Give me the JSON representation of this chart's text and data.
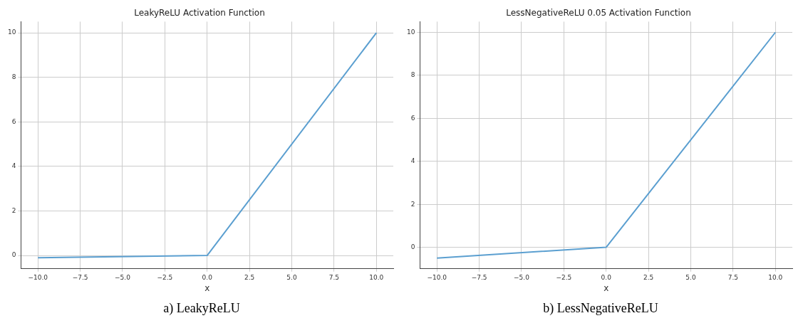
{
  "chart_data": [
    {
      "type": "line",
      "title": "LeakyReLU Activation Function",
      "xlabel": "x",
      "x": [
        -10,
        0,
        10
      ],
      "series": [
        {
          "color": "#5b9fd0",
          "values": [
            -0.1,
            0,
            10
          ]
        }
      ],
      "xlim": [
        -11,
        11
      ],
      "xticks": [
        {
          "value": -10,
          "label": "−10.0"
        },
        {
          "value": -7.5,
          "label": "−7.5"
        },
        {
          "value": -5,
          "label": "−5.0"
        },
        {
          "value": -2.5,
          "label": "−2.5"
        },
        {
          "value": 0,
          "label": "0.0"
        },
        {
          "value": 2.5,
          "label": "2.5"
        },
        {
          "value": 5,
          "label": "5.0"
        },
        {
          "value": 7.5,
          "label": "7.5"
        },
        {
          "value": 10,
          "label": "10.0"
        }
      ],
      "ylim": [
        -0.6,
        10.5
      ],
      "yticks": [
        0,
        2,
        4,
        6,
        8,
        10
      ],
      "grid": true,
      "marker": "none",
      "line_style": "solid",
      "annotations": [
        "a) LeakyReLU"
      ]
    },
    {
      "type": "line",
      "title": "LessNegativeReLU 0.05 Activation Function",
      "xlabel": "x",
      "x": [
        -10,
        0,
        10
      ],
      "series": [
        {
          "color": "#5b9fd0",
          "values": [
            -0.5,
            0,
            10
          ]
        }
      ],
      "xlim": [
        -11,
        11
      ],
      "xticks": [
        {
          "value": -10,
          "label": "−10.0"
        },
        {
          "value": -7.5,
          "label": "−7.5"
        },
        {
          "value": -5,
          "label": "−5.0"
        },
        {
          "value": -2.5,
          "label": "−2.5"
        },
        {
          "value": 0,
          "label": "0.0"
        },
        {
          "value": 2.5,
          "label": "2.5"
        },
        {
          "value": 5,
          "label": "5.0"
        },
        {
          "value": 7.5,
          "label": "7.5"
        },
        {
          "value": 10,
          "label": "10.0"
        }
      ],
      "ylim": [
        -1,
        10.5
      ],
      "yticks": [
        0,
        2,
        4,
        6,
        8,
        10
      ],
      "grid": true,
      "marker": "none",
      "line_style": "solid",
      "annotations": [
        "b) LessNegativeReLU"
      ]
    }
  ]
}
